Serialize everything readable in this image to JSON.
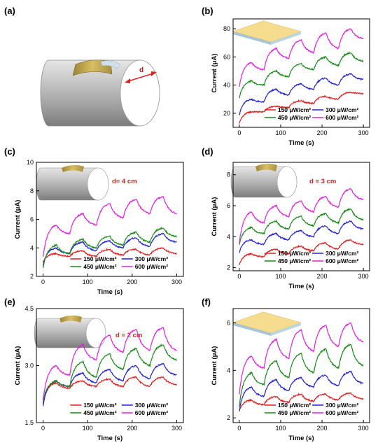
{
  "panels": [
    {
      "id": "a",
      "label": "(a)",
      "diameter_label": "d"
    },
    {
      "id": "b",
      "label": "(b)"
    },
    {
      "id": "c",
      "label": "(c)",
      "annotation": "d= 4 cm"
    },
    {
      "id": "d",
      "label": "(d)",
      "annotation": "d = 3 cm"
    },
    {
      "id": "e",
      "label": "(e)",
      "annotation": "d = 2 cm"
    },
    {
      "id": "f",
      "label": "(f)"
    }
  ],
  "colors": {
    "s150": "#e41a1c",
    "s300": "#1f1fd6",
    "s450": "#178a17",
    "s600": "#e21fe2"
  },
  "chart_data": [
    {
      "panel": "b",
      "type": "line",
      "xlabel": "Time (s)",
      "ylabel": "Current (μA)",
      "xlim": [
        -15,
        315
      ],
      "ylim": [
        10,
        87
      ],
      "xticks": [
        0,
        100,
        200,
        300
      ],
      "yticks": [
        20,
        40,
        60,
        80
      ],
      "legend": "bottom",
      "grid": false,
      "peaks": [
        30,
        90,
        150,
        210,
        270
      ],
      "cycle_period": 60,
      "series": [
        {
          "name": "150 μW/cm²",
          "color": "#e41a1c",
          "start": 13,
          "peaks": [
            21,
            25,
            29,
            32,
            35
          ],
          "troughs": [
            21,
            24,
            27,
            30,
            32
          ],
          "end": 34
        },
        {
          "name": "300 μW/cm²",
          "color": "#1f1fd6",
          "start": 19,
          "peaks": [
            30,
            37,
            41,
            45,
            48
          ],
          "troughs": [
            28,
            33,
            37,
            40,
            43
          ],
          "end": 44
        },
        {
          "name": "450 μW/cm²",
          "color": "#178a17",
          "start": 31,
          "peaks": [
            43,
            50,
            55,
            60,
            63
          ],
          "troughs": [
            40,
            46,
            51,
            54,
            57
          ],
          "end": 57
        },
        {
          "name": "600 μW/cm²",
          "color": "#e21fe2",
          "start": 39,
          "peaks": [
            56,
            66,
            72,
            77,
            80
          ],
          "troughs": [
            51,
            59,
            63,
            66,
            70
          ],
          "end": 73
        }
      ]
    },
    {
      "panel": "c",
      "type": "line",
      "xlabel": "Time (s)",
      "ylabel": "Current (μA)",
      "xlim": [
        -15,
        315
      ],
      "ylim": [
        2,
        10
      ],
      "xticks": [
        0,
        100,
        200,
        300
      ],
      "yticks": [
        2,
        4,
        6,
        8,
        10
      ],
      "legend": "bottom",
      "grid": false,
      "peaks": [
        30,
        90,
        150,
        210,
        270
      ],
      "cycle_period": 60,
      "series": [
        {
          "name": "150 μW/cm²",
          "color": "#e41a1c",
          "start": 3.0,
          "peaks": [
            3.6,
            3.8,
            3.9,
            3.9,
            4.0
          ],
          "troughs": [
            3.4,
            3.4,
            3.5,
            3.5,
            3.6
          ],
          "end": 3.6
        },
        {
          "name": "300 μW/cm²",
          "color": "#1f1fd6",
          "start": 2.8,
          "peaks": [
            4.0,
            4.4,
            4.5,
            4.7,
            5.0
          ],
          "troughs": [
            3.6,
            3.8,
            4.0,
            4.1,
            4.3
          ],
          "end": 4.4
        },
        {
          "name": "450 μW/cm²",
          "color": "#178a17",
          "start": 2.6,
          "peaks": [
            4.2,
            4.6,
            4.8,
            5.1,
            5.4
          ],
          "troughs": [
            3.6,
            4.0,
            4.2,
            4.4,
            4.6
          ],
          "end": 4.8
        },
        {
          "name": "600 μW/cm²",
          "color": "#e21fe2",
          "start": 3.4,
          "peaks": [
            5.6,
            6.4,
            7.1,
            7.4,
            7.6
          ],
          "troughs": [
            5.0,
            5.6,
            6.1,
            6.4,
            6.6
          ],
          "end": 6.4
        }
      ]
    },
    {
      "panel": "d",
      "type": "line",
      "xlabel": "Time (s)",
      "ylabel": "Current (μA)",
      "xlim": [
        -15,
        315
      ],
      "ylim": [
        1.8,
        8.8
      ],
      "xticks": [
        0,
        100,
        200,
        300
      ],
      "yticks": [
        2,
        4,
        6,
        8
      ],
      "legend": "bottom",
      "grid": false,
      "peaks": [
        30,
        90,
        150,
        210,
        270
      ],
      "cycle_period": 60,
      "series": [
        {
          "name": "150 μW/cm²",
          "color": "#e41a1c",
          "start": 2.2,
          "peaks": [
            2.9,
            3.2,
            3.4,
            3.6,
            3.8
          ],
          "troughs": [
            2.7,
            2.9,
            3.1,
            3.2,
            3.4
          ],
          "end": 3.5
        },
        {
          "name": "300 μW/cm²",
          "color": "#1f1fd6",
          "start": 3.0,
          "peaks": [
            3.8,
            4.2,
            4.4,
            4.7,
            5.0
          ],
          "troughs": [
            3.5,
            3.8,
            4.0,
            4.2,
            4.4
          ],
          "end": 4.5
        },
        {
          "name": "450 μW/cm²",
          "color": "#178a17",
          "start": 3.5,
          "peaks": [
            4.6,
            5.0,
            5.3,
            5.5,
            5.8
          ],
          "troughs": [
            4.2,
            4.5,
            4.7,
            4.9,
            5.1
          ],
          "end": 5.1
        },
        {
          "name": "600 μW/cm²",
          "color": "#e21fe2",
          "start": 3.6,
          "peaks": [
            5.6,
            6.0,
            6.3,
            6.6,
            7.1
          ],
          "troughs": [
            4.9,
            5.3,
            5.6,
            5.9,
            6.1
          ],
          "end": 6.4
        }
      ]
    },
    {
      "panel": "e",
      "type": "line",
      "xlabel": "Time (s)",
      "ylabel": "Current (μA)",
      "xlim": [
        -15,
        315
      ],
      "ylim": [
        1.5,
        4.5
      ],
      "xticks": [
        0,
        100,
        200,
        300
      ],
      "yticks": [
        1.5,
        3.0,
        4.5
      ],
      "legend": "bottom",
      "grid": false,
      "peaks": [
        30,
        90,
        150,
        210,
        270
      ],
      "cycle_period": 60,
      "series": [
        {
          "name": "150 μW/cm²",
          "color": "#e41a1c",
          "start": 2.0,
          "peaks": [
            2.55,
            2.6,
            2.65,
            2.7,
            2.7
          ],
          "troughs": [
            2.4,
            2.45,
            2.45,
            2.45,
            2.45
          ],
          "end": 2.5
        },
        {
          "name": "300 μW/cm²",
          "color": "#1f1fd6",
          "start": 1.95,
          "peaks": [
            2.6,
            2.8,
            2.9,
            3.0,
            3.05
          ],
          "troughs": [
            2.45,
            2.55,
            2.6,
            2.65,
            2.7
          ],
          "end": 2.75
        },
        {
          "name": "450 μW/cm²",
          "color": "#178a17",
          "start": 2.05,
          "peaks": [
            2.6,
            3.1,
            3.3,
            3.45,
            3.55
          ],
          "troughs": [
            2.45,
            2.7,
            2.9,
            3.0,
            3.1
          ],
          "end": 3.15
        },
        {
          "name": "600 μW/cm²",
          "color": "#e21fe2",
          "start": 2.1,
          "peaks": [
            3.0,
            3.55,
            3.8,
            3.95,
            4.0
          ],
          "troughs": [
            2.75,
            3.15,
            3.35,
            3.4,
            3.45
          ],
          "end": 3.4
        }
      ]
    },
    {
      "panel": "f",
      "type": "line",
      "xlabel": "Time (s)",
      "ylabel": "Current (μA)",
      "xlim": [
        -15,
        315
      ],
      "ylim": [
        1.8,
        6.6
      ],
      "xticks": [
        0,
        100,
        200,
        300
      ],
      "yticks": [
        2,
        4,
        6
      ],
      "legend": "bottom",
      "grid": false,
      "peaks": [
        30,
        90,
        150,
        210,
        270
      ],
      "cycle_period": 60,
      "series": [
        {
          "name": "150 μW/cm²",
          "color": "#e41a1c",
          "start": 2.3,
          "peaks": [
            2.75,
            2.9,
            3.0,
            3.0,
            3.05
          ],
          "troughs": [
            2.55,
            2.65,
            2.7,
            2.75,
            2.8
          ],
          "end": 2.8
        },
        {
          "name": "300 μW/cm²",
          "color": "#1f1fd6",
          "start": 2.3,
          "peaks": [
            3.3,
            3.6,
            3.7,
            3.8,
            3.95
          ],
          "troughs": [
            2.9,
            3.15,
            3.3,
            3.35,
            3.4
          ],
          "end": 3.45
        },
        {
          "name": "450 μW/cm²",
          "color": "#178a17",
          "start": 2.5,
          "peaks": [
            3.9,
            4.4,
            4.7,
            4.9,
            5.1
          ],
          "troughs": [
            3.4,
            3.7,
            3.9,
            4.1,
            4.2
          ],
          "end": 4.2
        },
        {
          "name": "600 μW/cm²",
          "color": "#e21fe2",
          "start": 3.0,
          "peaks": [
            4.6,
            5.3,
            5.7,
            5.9,
            6.0
          ],
          "troughs": [
            4.1,
            4.5,
            4.8,
            5.0,
            5.2
          ],
          "end": 5.2
        }
      ]
    }
  ]
}
